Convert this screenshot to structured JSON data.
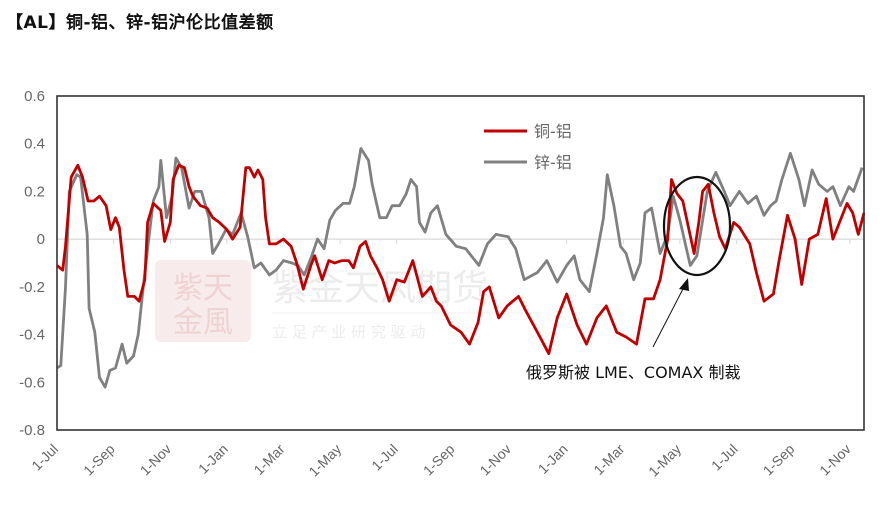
{
  "title": "【AL】铜-铝、锌-铝沪伦比值差额",
  "watermark": {
    "logo": "紫金天风",
    "name": "紫金天风期货",
    "slogan": "立 足 产 业   研 究 驱 动"
  },
  "chart_data": {
    "type": "line",
    "title": "【AL】铜-铝、锌-铝沪伦比值差额",
    "xlabel": "",
    "ylabel": "",
    "ylim": [
      -0.8,
      0.6
    ],
    "y_ticks": [
      "0.6",
      "0.4",
      "0.2",
      "0",
      "-0.2",
      "-0.4",
      "-0.6",
      "-0.8"
    ],
    "x_ticks": [
      "1-Jul",
      "1-Sep",
      "1-Nov",
      "1-Jan",
      "1-Mar",
      "1-May",
      "1-Jul",
      "1-Sep",
      "1-Nov",
      "1-Jan",
      "1-Mar",
      "1-May",
      "1-Jul",
      "1-Sep",
      "1-Nov"
    ],
    "xlim": [
      "1-Jul",
      "16-Nov"
    ],
    "grid": "zero line only",
    "legend_position": "top-center",
    "annotation": {
      "text": "俄罗斯被 LME、COMAX 制裁",
      "target": "ellipse around May (third year)"
    },
    "series": [
      {
        "name": "铜-铝",
        "color": "#c00000",
        "points": [
          [
            "1-Jul",
            -0.11
          ],
          [
            "7-Jul",
            -0.13
          ],
          [
            "10-Jul",
            -0.03
          ],
          [
            "16-Jul",
            0.26
          ],
          [
            "23-Jul",
            0.31
          ],
          [
            "28-Jul",
            0.26
          ],
          [
            "4-Aug",
            0.16
          ],
          [
            "10-Aug",
            0.16
          ],
          [
            "16-Aug",
            0.18
          ],
          [
            "23-Aug",
            0.14
          ],
          [
            "28-Aug",
            0.04
          ],
          [
            "3-Sep",
            0.09
          ],
          [
            "7-Sep",
            0.05
          ],
          [
            "12-Sep",
            -0.13
          ],
          [
            "16-Sep",
            -0.24
          ],
          [
            "23-Sep",
            -0.24
          ],
          [
            "28-Sep",
            -0.26
          ],
          [
            "4-Oct",
            -0.17
          ],
          [
            "7-Oct",
            0.07
          ],
          [
            "13-Oct",
            0.15
          ],
          [
            "21-Oct",
            0.12
          ],
          [
            "25-Oct",
            -0.01
          ],
          [
            "1-Nov",
            0.07
          ],
          [
            "4-Nov",
            0.25
          ],
          [
            "10-Nov",
            0.31
          ],
          [
            "16-Nov",
            0.3
          ],
          [
            "21-Nov",
            0.22
          ],
          [
            "25-Nov",
            0.18
          ],
          [
            "3-Dec",
            0.14
          ],
          [
            "10-Dec",
            0.13
          ],
          [
            "16-Dec",
            0.09
          ],
          [
            "23-Dec",
            0.07
          ],
          [
            "1-Jan",
            0.04
          ],
          [
            "7-Jan",
            0.0
          ],
          [
            "15-Jan",
            0.05
          ],
          [
            "21-Jan",
            0.3
          ],
          [
            "25-Jan",
            0.3
          ],
          [
            "30-Jan",
            0.26
          ],
          [
            "4-Feb",
            0.29
          ],
          [
            "9-Feb",
            0.25
          ],
          [
            "12-Feb",
            0.09
          ],
          [
            "16-Feb",
            -0.02
          ],
          [
            "23-Feb",
            -0.02
          ],
          [
            "1-Mar",
            0.0
          ],
          [
            "9-Mar",
            -0.03
          ],
          [
            "15-Mar",
            -0.1
          ],
          [
            "22-Mar",
            -0.21
          ],
          [
            "30-Mar",
            -0.11
          ],
          [
            "4-Apr",
            -0.07
          ],
          [
            "12-Apr",
            -0.17
          ],
          [
            "19-Apr",
            -0.09
          ],
          [
            "25-Apr",
            -0.1
          ],
          [
            "3-May",
            -0.09
          ],
          [
            "10-May",
            -0.09
          ],
          [
            "15-May",
            -0.12
          ],
          [
            "22-May",
            -0.03
          ],
          [
            "28-May",
            -0.01
          ],
          [
            "3-Jun",
            -0.07
          ],
          [
            "10-Jun",
            -0.12
          ],
          [
            "16-Jun",
            -0.17
          ],
          [
            "23-Jun",
            -0.26
          ],
          [
            "1-Jul",
            -0.17
          ],
          [
            "9-Jul",
            -0.18
          ],
          [
            "18-Jul",
            -0.09
          ],
          [
            "22-Jul",
            -0.15
          ],
          [
            "28-Jul",
            -0.24
          ],
          [
            "7-Aug",
            -0.2
          ],
          [
            "13-Aug",
            -0.26
          ],
          [
            "18-Aug",
            -0.28
          ],
          [
            "28-Aug",
            -0.36
          ],
          [
            "9-Sep",
            -0.39
          ],
          [
            "18-Sep",
            -0.44
          ],
          [
            "27-Sep",
            -0.35
          ],
          [
            "3-Oct",
            -0.22
          ],
          [
            "9-Oct",
            -0.2
          ],
          [
            "19-Oct",
            -0.33
          ],
          [
            "28-Oct",
            -0.28
          ],
          [
            "10-Nov",
            -0.24
          ],
          [
            "19-Nov",
            -0.31
          ],
          [
            "30-Nov",
            -0.39
          ],
          [
            "12-Dec",
            -0.48
          ],
          [
            "21-Dec",
            -0.33
          ],
          [
            "1-Jan",
            -0.23
          ],
          [
            "12-Jan",
            -0.36
          ],
          [
            "22-Jan",
            -0.44
          ],
          [
            "3-Feb",
            -0.33
          ],
          [
            "13-Feb",
            -0.28
          ],
          [
            "24-Feb",
            -0.39
          ],
          [
            "4-Mar",
            -0.41
          ],
          [
            "15-Mar",
            -0.44
          ],
          [
            "24-Mar",
            -0.25
          ],
          [
            "3-Apr",
            -0.25
          ],
          [
            "10-Apr",
            -0.17
          ],
          [
            "18-Apr",
            0.0
          ],
          [
            "22-Apr",
            0.25
          ],
          [
            "28-Apr",
            0.19
          ],
          [
            "4-May",
            0.16
          ],
          [
            "16-May",
            -0.06
          ],
          [
            "21-May",
            0.07
          ],
          [
            "25-May",
            0.2
          ],
          [
            "1-Jun",
            0.23
          ],
          [
            "7-Jun",
            0.11
          ],
          [
            "13-Jun",
            0.01
          ],
          [
            "19-Jun",
            -0.04
          ],
          [
            "28-Jun",
            0.07
          ],
          [
            "4-Jul",
            0.05
          ],
          [
            "15-Jul",
            -0.02
          ],
          [
            "22-Jul",
            -0.14
          ],
          [
            "30-Jul",
            -0.26
          ],
          [
            "10-Aug",
            -0.23
          ],
          [
            "16-Aug",
            -0.09
          ],
          [
            "25-Aug",
            0.1
          ],
          [
            "3-Sep",
            0.0
          ],
          [
            "10-Sep",
            -0.19
          ],
          [
            "18-Sep",
            0.0
          ],
          [
            "27-Sep",
            0.02
          ],
          [
            "6-Oct",
            0.17
          ],
          [
            "13-Oct",
            0.0
          ],
          [
            "21-Oct",
            0.08
          ],
          [
            "28-Oct",
            0.15
          ],
          [
            "4-Nov",
            0.11
          ],
          [
            "10-Nov",
            0.02
          ],
          [
            "16-Nov",
            0.11
          ]
        ]
      },
      {
        "name": "锌-铝",
        "color": "#808080",
        "points": [
          [
            "1-Jul",
            -0.54
          ],
          [
            "5-Jul",
            -0.53
          ],
          [
            "10-Jul",
            -0.2
          ],
          [
            "14-Jul",
            0.2
          ],
          [
            "22-Jul",
            0.27
          ],
          [
            "26-Jul",
            0.26
          ],
          [
            "3-Aug",
            0.02
          ],
          [
            "5-Aug",
            -0.29
          ],
          [
            "11-Aug",
            -0.39
          ],
          [
            "16-Aug",
            -0.58
          ],
          [
            "22-Aug",
            -0.62
          ],
          [
            "27-Aug",
            -0.55
          ],
          [
            "3-Sep",
            -0.54
          ],
          [
            "10-Sep",
            -0.44
          ],
          [
            "15-Sep",
            -0.52
          ],
          [
            "22-Sep",
            -0.49
          ],
          [
            "27-Sep",
            -0.4
          ],
          [
            "3-Oct",
            -0.18
          ],
          [
            "7-Oct",
            -0.04
          ],
          [
            "13-Oct",
            0.16
          ],
          [
            "19-Oct",
            0.22
          ],
          [
            "21-Oct",
            0.33
          ],
          [
            "27-Oct",
            0.09
          ],
          [
            "3-Nov",
            0.18
          ],
          [
            "7-Nov",
            0.34
          ],
          [
            "13-Nov",
            0.3
          ],
          [
            "21-Nov",
            0.13
          ],
          [
            "27-Nov",
            0.2
          ],
          [
            "4-Dec",
            0.2
          ],
          [
            "12-Dec",
            0.09
          ],
          [
            "16-Dec",
            -0.06
          ],
          [
            "22-Dec",
            -0.02
          ],
          [
            "30-Dec",
            0.04
          ],
          [
            "7-Jan",
            0.02
          ],
          [
            "16-Jan",
            0.11
          ],
          [
            "23-Jan",
            0.01
          ],
          [
            "30-Jan",
            -0.12
          ],
          [
            "7-Feb",
            -0.1
          ],
          [
            "16-Feb",
            -0.15
          ],
          [
            "23-Feb",
            -0.13
          ],
          [
            "1-Mar",
            -0.09
          ],
          [
            "10-Mar",
            -0.1
          ],
          [
            "16-Mar",
            -0.11
          ],
          [
            "23-Mar",
            -0.15
          ],
          [
            "1-Apr",
            -0.07
          ],
          [
            "7-Apr",
            0.0
          ],
          [
            "14-Apr",
            -0.04
          ],
          [
            "20-Apr",
            0.08
          ],
          [
            "26-Apr",
            0.12
          ],
          [
            "4-May",
            0.15
          ],
          [
            "11-May",
            0.15
          ],
          [
            "16-May",
            0.22
          ],
          [
            "23-May",
            0.38
          ],
          [
            "1-Jun",
            0.33
          ],
          [
            "5-Jun",
            0.23
          ],
          [
            "13-Jun",
            0.09
          ],
          [
            "20-Jun",
            0.09
          ],
          [
            "26-Jun",
            0.14
          ],
          [
            "4-Jul",
            0.14
          ],
          [
            "11-Jul",
            0.19
          ],
          [
            "16-Jul",
            0.25
          ],
          [
            "22-Jul",
            0.22
          ],
          [
            "25-Jul",
            0.07
          ],
          [
            "1-Aug",
            0.03
          ],
          [
            "7-Aug",
            0.11
          ],
          [
            "14-Aug",
            0.14
          ],
          [
            "23-Aug",
            0.02
          ],
          [
            "4-Sep",
            -0.03
          ],
          [
            "14-Sep",
            -0.04
          ],
          [
            "28-Sep",
            -0.11
          ],
          [
            "7-Oct",
            -0.02
          ],
          [
            "16-Oct",
            0.02
          ],
          [
            "29-Oct",
            0.01
          ],
          [
            "7-Nov",
            -0.04
          ],
          [
            "16-Nov",
            -0.17
          ],
          [
            "30-Nov",
            -0.14
          ],
          [
            "10-Dec",
            -0.09
          ],
          [
            "21-Dec",
            -0.18
          ],
          [
            "1-Jan",
            -0.11
          ],
          [
            "9-Jan",
            -0.07
          ],
          [
            "15-Jan",
            -0.17
          ],
          [
            "25-Jan",
            -0.22
          ],
          [
            "3-Feb",
            -0.06
          ],
          [
            "10-Feb",
            0.09
          ],
          [
            "14-Feb",
            0.27
          ],
          [
            "21-Feb",
            0.14
          ],
          [
            "28-Feb",
            -0.03
          ],
          [
            "4-Mar",
            -0.06
          ],
          [
            "12-Mar",
            -0.17
          ],
          [
            "19-Mar",
            -0.1
          ],
          [
            "24-Mar",
            0.11
          ],
          [
            "1-Apr",
            0.13
          ],
          [
            "10-Apr",
            -0.06
          ],
          [
            "18-Apr",
            0.02
          ],
          [
            "24-Apr",
            0.18
          ],
          [
            "1-May",
            0.08
          ],
          [
            "9-May",
            -0.06
          ],
          [
            "12-May",
            -0.11
          ],
          [
            "19-May",
            -0.07
          ],
          [
            "30-May",
            0.2
          ],
          [
            "9-Jun",
            0.28
          ],
          [
            "18-Jun",
            0.2
          ],
          [
            "24-Jun",
            0.14
          ],
          [
            "4-Jul",
            0.2
          ],
          [
            "13-Jul",
            0.15
          ],
          [
            "22-Jul",
            0.18
          ],
          [
            "30-Jul",
            0.1
          ],
          [
            "7-Aug",
            0.14
          ],
          [
            "13-Aug",
            0.16
          ],
          [
            "19-Aug",
            0.25
          ],
          [
            "28-Aug",
            0.36
          ],
          [
            "7-Sep",
            0.25
          ],
          [
            "13-Sep",
            0.14
          ],
          [
            "21-Sep",
            0.29
          ],
          [
            "28-Sep",
            0.23
          ],
          [
            "7-Oct",
            0.2
          ],
          [
            "13-Oct",
            0.22
          ],
          [
            "21-Oct",
            0.14
          ],
          [
            "30-Oct",
            0.22
          ],
          [
            "5-Nov",
            0.2
          ],
          [
            "14-Nov",
            0.3
          ]
        ]
      }
    ]
  }
}
